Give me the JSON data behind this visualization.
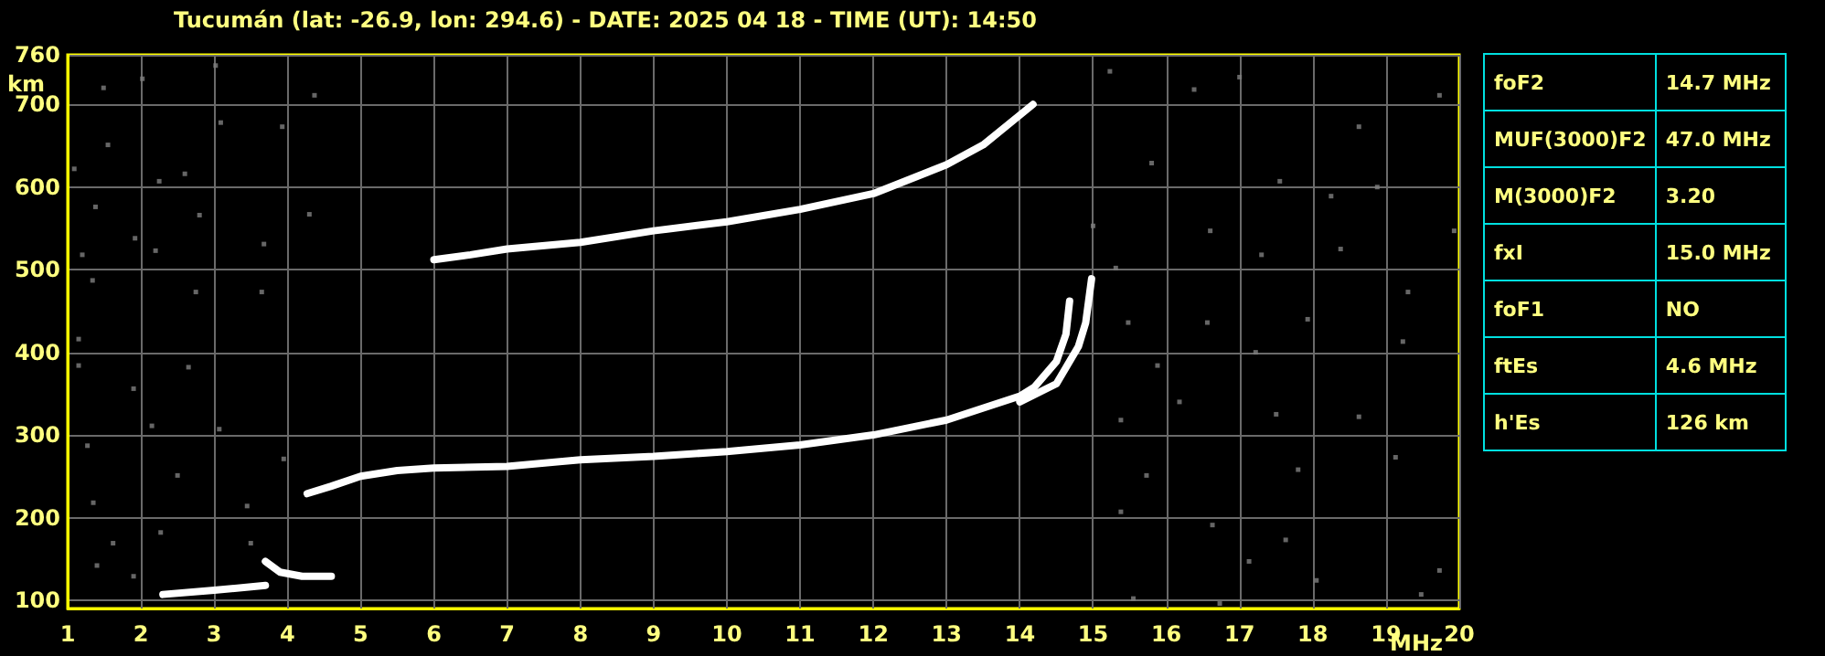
{
  "chart_data": [
    {
      "type": "line",
      "title": "Tucumán (lat: -26.9, lon: 294.6) - DATE: 2025 04 18 - TIME (UT): 14:50",
      "xlabel": "MHz",
      "ylabel": "km",
      "xlim": [
        1,
        20
      ],
      "ylim": [
        90,
        760
      ],
      "xticks": [
        1,
        2,
        3,
        4,
        5,
        6,
        7,
        8,
        9,
        10,
        11,
        12,
        13,
        14,
        15,
        16,
        17,
        18,
        19,
        20
      ],
      "yticks": [
        100,
        200,
        300,
        400,
        500,
        600,
        700,
        760
      ],
      "grid": true,
      "line_style": "solid",
      "series": [
        {
          "color": "#ffffff",
          "x": [
            2.3,
            3.0,
            3.7
          ],
          "values": [
            107,
            112,
            118
          ]
        },
        {
          "color": "#ffffff",
          "x": [
            3.7,
            3.9,
            4.2,
            4.6
          ],
          "values": [
            147,
            134,
            129,
            129
          ]
        },
        {
          "color": "#ffffff",
          "x": [
            4.27,
            4.6,
            5.0,
            5.5,
            6,
            7,
            8,
            9,
            10,
            11,
            12,
            13,
            14,
            14.2,
            14.5,
            14.63,
            14.68
          ],
          "values": [
            229,
            238,
            250,
            257,
            260,
            262,
            270,
            274,
            280,
            288,
            300,
            318,
            347,
            358,
            389,
            422,
            462
          ]
        },
        {
          "color": "#ffffff",
          "x": [
            14.0,
            14.5,
            14.8,
            14.9,
            14.98
          ],
          "values": [
            340,
            362,
            407,
            436,
            489
          ]
        },
        {
          "color": "#ffffff",
          "x": [
            6.0,
            6.5,
            7,
            8,
            9,
            10,
            11,
            12,
            13,
            13.5,
            14.18
          ],
          "values": [
            512,
            518,
            525,
            533,
            547,
            558,
            573,
            592,
            627,
            651,
            700
          ]
        },
        {
          "type": "scatter",
          "marker": "square",
          "color": "#808080",
          "x": [
            1.49,
            2.02,
            3.02,
            4.37,
            3.09,
            3.93,
            1.55,
            1.09,
            2.25,
            2.6,
            1.38,
            2.8,
            4.3,
            1.92,
            2.2,
            3.68,
            1.2,
            1.34,
            2.75,
            3.65,
            1.15,
            1.15,
            1.9,
            2.65,
            2.15,
            3.07,
            1.27,
            2.5,
            3.95,
            1.35,
            3.45,
            2.27,
            1.62,
            3.5,
            1.4,
            1.9,
            15.23,
            16.38,
            18.63,
            17.0,
            19.73,
            15.8,
            17.55,
            18.88,
            15.0,
            16.6,
            18.25,
            19.93,
            15.31,
            17.3,
            18.38,
            15.48,
            16.56,
            17.93,
            19.3,
            15.88,
            17.22,
            19.23,
            15.38,
            16.18,
            17.5,
            18.63,
            15.73,
            17.8,
            19.13,
            15.38,
            16.63,
            17.63,
            19.73,
            15.55,
            16.73,
            18.05,
            19.48,
            17.13
          ],
          "values": [
            720,
            731,
            747,
            711,
            678,
            673,
            651,
            622,
            607,
            616,
            576,
            566,
            567,
            538,
            523,
            531,
            518,
            487,
            473,
            473,
            416,
            384,
            356,
            382,
            311,
            307,
            287,
            251,
            271,
            218,
            214,
            182,
            169,
            169,
            142,
            129,
            740,
            718,
            673,
            733,
            711,
            629,
            607,
            600,
            553,
            547,
            589,
            547,
            502,
            518,
            525,
            436,
            436,
            440,
            473,
            384,
            400,
            413,
            318,
            340,
            325,
            322,
            251,
            258,
            273,
            207,
            191,
            173,
            136,
            102,
            96,
            124,
            107,
            147
          ]
        }
      ]
    },
    {
      "type": "other",
      "annotations": [
        "foF2",
        "14.7 MHz",
        "MUF(3000)F2",
        "47.0 MHz",
        "M(3000)F2",
        "3.20",
        "fxI",
        "15.0 MHz",
        "foF1",
        "NO",
        "ftEs",
        "4.6 MHz",
        "h'Es",
        "126 km"
      ]
    }
  ]
}
